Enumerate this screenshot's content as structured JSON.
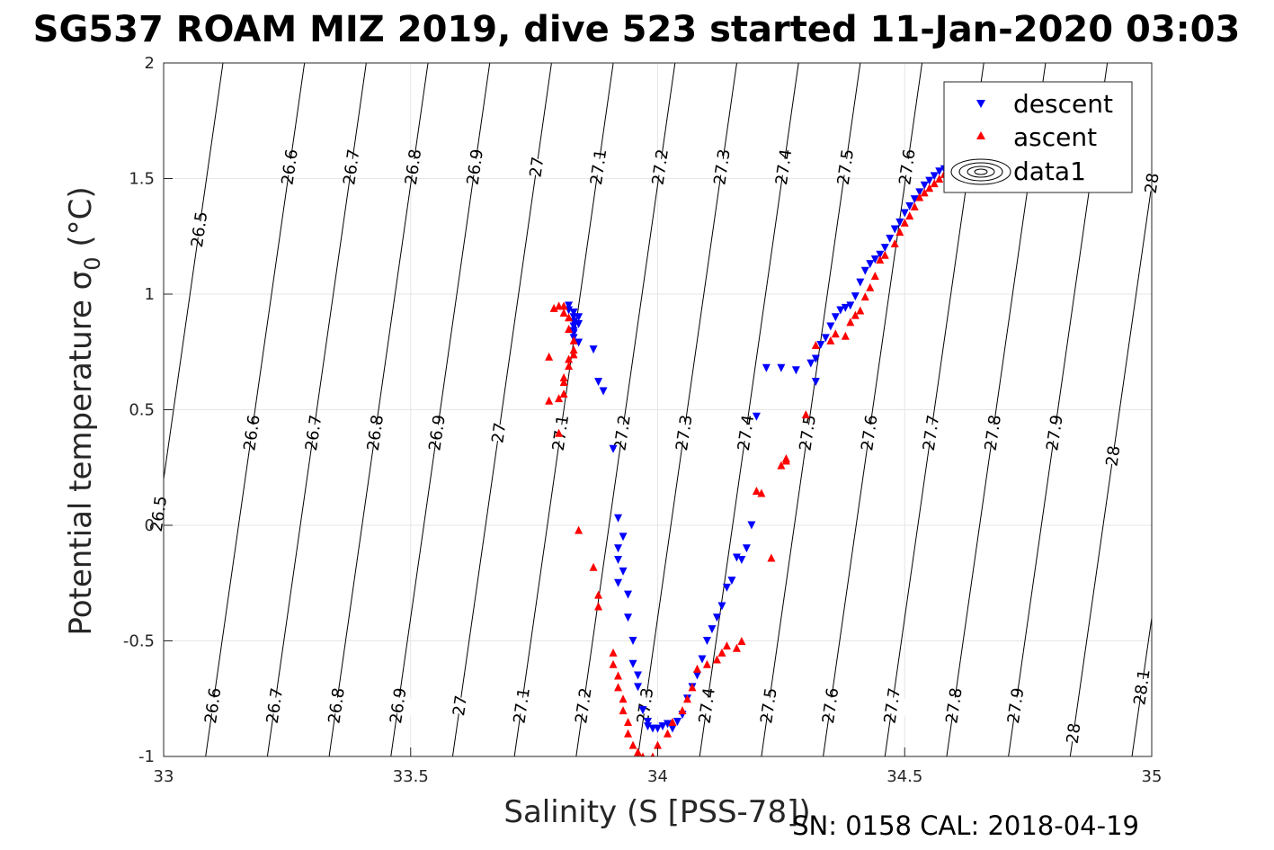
{
  "chart_data": {
    "type": "scatter",
    "title": "SG537 ROAM MIZ 2019, dive 523 started 11-Jan-2020 03:03",
    "xlabel": "Salinity (S [PSS-78])",
    "ylabel_main": "Potential temperature ",
    "ylabel_sym": "σ",
    "ylabel_sub": "0",
    "ylabel_unit": " (°C)",
    "xlim": [
      33,
      35
    ],
    "ylim": [
      -1,
      2
    ],
    "xticks": [
      {
        "v": 33,
        "label": "33"
      },
      {
        "v": 33.5,
        "label": "33.5"
      },
      {
        "v": 34,
        "label": "34"
      },
      {
        "v": 34.5,
        "label": "34.5"
      },
      {
        "v": 35,
        "label": "35"
      }
    ],
    "yticks": [
      {
        "v": -1,
        "label": "-1"
      },
      {
        "v": -0.5,
        "label": "-0.5"
      },
      {
        "v": 0,
        "label": "0"
      },
      {
        "v": 0.5,
        "label": "0.5"
      },
      {
        "v": 1,
        "label": "1"
      },
      {
        "v": 1.5,
        "label": "1.5"
      },
      {
        "v": 2,
        "label": "2"
      }
    ],
    "grid": true,
    "legend_position": "top-right",
    "footer": "SN: 0158  CAL: 2018-04-19",
    "isopycnals": [
      {
        "sigma": 26.5,
        "s_at_tmin": 32.92,
        "labels": [
          {
            "text": "26.5",
            "t": 0.05
          },
          {
            "text": "26.5",
            "t": 1.28
          }
        ]
      },
      {
        "sigma": 26.6,
        "s_at_tmin": 33.085,
        "labels": [
          {
            "text": "26.6",
            "t": -0.78
          },
          {
            "text": "26.6",
            "t": 0.4
          },
          {
            "text": "26.6",
            "t": 1.55
          }
        ]
      },
      {
        "sigma": 26.7,
        "s_at_tmin": 33.21,
        "labels": [
          {
            "text": "26.7",
            "t": -0.78
          },
          {
            "text": "26.7",
            "t": 0.4
          },
          {
            "text": "26.7",
            "t": 1.55
          }
        ]
      },
      {
        "sigma": 26.8,
        "s_at_tmin": 33.335,
        "labels": [
          {
            "text": "26.8",
            "t": -0.78
          },
          {
            "text": "26.8",
            "t": 0.4
          },
          {
            "text": "26.8",
            "t": 1.55
          }
        ]
      },
      {
        "sigma": 26.9,
        "s_at_tmin": 33.46,
        "labels": [
          {
            "text": "26.9",
            "t": -0.78
          },
          {
            "text": "26.9",
            "t": 0.4
          },
          {
            "text": "26.9",
            "t": 1.55
          }
        ]
      },
      {
        "sigma": 27.0,
        "s_at_tmin": 33.585,
        "labels": [
          {
            "text": "27",
            "t": -0.78
          },
          {
            "text": "27",
            "t": 0.4
          },
          {
            "text": "27",
            "t": 1.55
          }
        ]
      },
      {
        "sigma": 27.1,
        "s_at_tmin": 33.71,
        "labels": [
          {
            "text": "27.1",
            "t": -0.78
          },
          {
            "text": "27.1",
            "t": 0.4
          },
          {
            "text": "27.1",
            "t": 1.55
          }
        ]
      },
      {
        "sigma": 27.2,
        "s_at_tmin": 33.835,
        "labels": [
          {
            "text": "27.2",
            "t": -0.78
          },
          {
            "text": "27.2",
            "t": 0.4
          },
          {
            "text": "27.2",
            "t": 1.55
          }
        ]
      },
      {
        "sigma": 27.3,
        "s_at_tmin": 33.96,
        "labels": [
          {
            "text": "27.3",
            "t": -0.78
          },
          {
            "text": "27.3",
            "t": 0.4
          },
          {
            "text": "27.3",
            "t": 1.55
          }
        ]
      },
      {
        "sigma": 27.4,
        "s_at_tmin": 34.085,
        "labels": [
          {
            "text": "27.4",
            "t": -0.78
          },
          {
            "text": "27.4",
            "t": 0.4
          },
          {
            "text": "27.4",
            "t": 1.55
          }
        ]
      },
      {
        "sigma": 27.5,
        "s_at_tmin": 34.21,
        "labels": [
          {
            "text": "27.5",
            "t": -0.78
          },
          {
            "text": "27.5",
            "t": 0.4
          },
          {
            "text": "27.5",
            "t": 1.55
          }
        ]
      },
      {
        "sigma": 27.6,
        "s_at_tmin": 34.335,
        "labels": [
          {
            "text": "27.6",
            "t": -0.78
          },
          {
            "text": "27.6",
            "t": 0.4
          },
          {
            "text": "27.6",
            "t": 1.55
          }
        ]
      },
      {
        "sigma": 27.7,
        "s_at_tmin": 34.46,
        "labels": [
          {
            "text": "27.7",
            "t": -0.78
          },
          {
            "text": "27.7",
            "t": 0.4
          }
        ]
      },
      {
        "sigma": 27.8,
        "s_at_tmin": 34.585,
        "labels": [
          {
            "text": "27.8",
            "t": -0.78
          },
          {
            "text": "27.8",
            "t": 0.4
          }
        ]
      },
      {
        "sigma": 27.9,
        "s_at_tmin": 34.71,
        "labels": [
          {
            "text": "27.9",
            "t": -0.78
          },
          {
            "text": "27.9",
            "t": 0.4
          }
        ]
      },
      {
        "sigma": 28.0,
        "s_at_tmin": 34.835,
        "labels": [
          {
            "text": "28",
            "t": -0.9
          },
          {
            "text": "28",
            "t": 0.3
          },
          {
            "text": "28",
            "t": 1.48
          }
        ]
      },
      {
        "sigma": 28.1,
        "s_at_tmin": 34.96,
        "labels": [
          {
            "text": "28.1",
            "t": -0.7
          }
        ]
      }
    ],
    "series": [
      {
        "name": "descent",
        "color": "#0000ff",
        "marker": "triangle-down",
        "x": [
          33.82,
          33.82,
          33.83,
          33.83,
          33.83,
          33.83,
          33.83,
          33.83,
          33.83,
          33.84,
          33.84,
          33.84,
          33.87,
          33.88,
          33.89,
          33.91,
          33.92,
          33.92,
          33.92,
          33.92,
          33.93,
          33.93,
          33.94,
          33.94,
          33.95,
          33.95,
          33.96,
          33.96,
          33.97,
          33.98,
          33.98,
          33.99,
          34.0,
          34.01,
          34.02,
          34.03,
          34.04,
          34.05,
          34.06,
          34.07,
          34.08,
          34.09,
          34.1,
          34.11,
          34.12,
          34.13,
          34.14,
          34.15,
          34.16,
          34.17,
          34.18,
          34.19,
          34.2,
          34.22,
          34.25,
          34.28,
          34.31,
          34.32,
          34.32,
          34.33,
          34.34,
          34.35,
          34.36,
          34.37,
          34.38,
          34.39,
          34.4,
          34.41,
          34.42,
          34.43,
          34.44,
          34.45,
          34.46,
          34.47,
          34.48,
          34.49,
          34.5,
          34.51,
          34.52,
          34.53,
          34.54,
          34.55,
          34.56,
          34.57,
          34.58,
          34.59
        ],
        "y": [
          0.95,
          0.93,
          0.92,
          0.9,
          0.88,
          0.86,
          0.84,
          0.83,
          0.81,
          0.79,
          0.9,
          0.87,
          0.76,
          0.62,
          0.58,
          0.33,
          -0.25,
          -0.1,
          -0.15,
          0.03,
          -0.05,
          -0.2,
          -0.3,
          -0.4,
          -0.5,
          -0.6,
          -0.65,
          -0.7,
          -0.8,
          -0.85,
          -0.87,
          -0.88,
          -0.88,
          -0.87,
          -0.86,
          -0.88,
          -0.85,
          -0.82,
          -0.75,
          -0.7,
          -0.65,
          -0.58,
          -0.5,
          -0.45,
          -0.4,
          -0.35,
          -0.27,
          -0.24,
          -0.14,
          -0.15,
          -0.1,
          -0.0,
          0.47,
          0.68,
          0.68,
          0.67,
          0.7,
          0.72,
          0.62,
          0.78,
          0.81,
          0.86,
          0.9,
          0.93,
          0.94,
          0.95,
          0.99,
          1.05,
          1.1,
          1.13,
          1.15,
          1.17,
          1.2,
          1.24,
          1.28,
          1.31,
          1.35,
          1.38,
          1.41,
          1.44,
          1.47,
          1.49,
          1.51,
          1.53,
          1.54,
          1.55
        ]
      },
      {
        "name": "ascent",
        "color": "#ff0000",
        "marker": "triangle-up",
        "x": [
          33.78,
          33.8,
          33.81,
          33.81,
          33.82,
          33.82,
          33.83,
          33.83,
          33.83,
          33.82,
          33.82,
          33.81,
          33.81,
          33.8,
          33.79,
          33.78,
          33.8,
          33.81,
          33.84,
          33.87,
          33.88,
          33.88,
          33.91,
          33.91,
          33.92,
          33.92,
          33.93,
          33.93,
          33.94,
          33.94,
          33.95,
          33.96,
          33.97,
          33.99,
          34.0,
          34.02,
          34.03,
          34.05,
          34.06,
          34.07,
          34.08,
          34.1,
          34.12,
          34.13,
          34.14,
          34.16,
          34.17,
          34.2,
          34.21,
          34.23,
          34.25,
          34.26,
          34.26,
          34.3,
          34.32,
          34.35,
          34.36,
          34.38,
          34.39,
          34.4,
          34.41,
          34.42,
          34.43,
          34.44,
          34.45,
          34.46,
          34.48,
          34.49,
          34.5,
          34.51,
          34.52,
          34.53,
          34.54,
          34.55,
          34.56,
          34.57,
          34.58
        ],
        "y": [
          0.54,
          0.55,
          0.62,
          0.64,
          0.69,
          0.72,
          0.74,
          0.76,
          0.8,
          0.85,
          0.9,
          0.92,
          0.95,
          0.95,
          0.94,
          0.73,
          0.4,
          0.57,
          -0.02,
          -0.18,
          -0.3,
          -0.35,
          -0.55,
          -0.6,
          -0.65,
          -0.7,
          -0.75,
          -0.8,
          -0.85,
          -0.9,
          -0.95,
          -0.98,
          -1.0,
          -1.0,
          -0.95,
          -0.9,
          -0.85,
          -0.8,
          -0.75,
          -0.7,
          -0.62,
          -0.6,
          -0.58,
          -0.55,
          -0.52,
          -0.53,
          -0.5,
          0.15,
          0.14,
          -0.14,
          0.26,
          0.28,
          0.29,
          0.48,
          0.78,
          0.8,
          0.83,
          0.82,
          0.88,
          0.91,
          0.93,
          0.99,
          1.03,
          1.08,
          1.15,
          1.17,
          1.22,
          1.27,
          1.31,
          1.34,
          1.38,
          1.42,
          1.44,
          1.46,
          1.48,
          1.5,
          1.52
        ]
      },
      {
        "name": "data1",
        "color": "#000000",
        "marker": "contour",
        "x": [],
        "y": []
      }
    ]
  }
}
